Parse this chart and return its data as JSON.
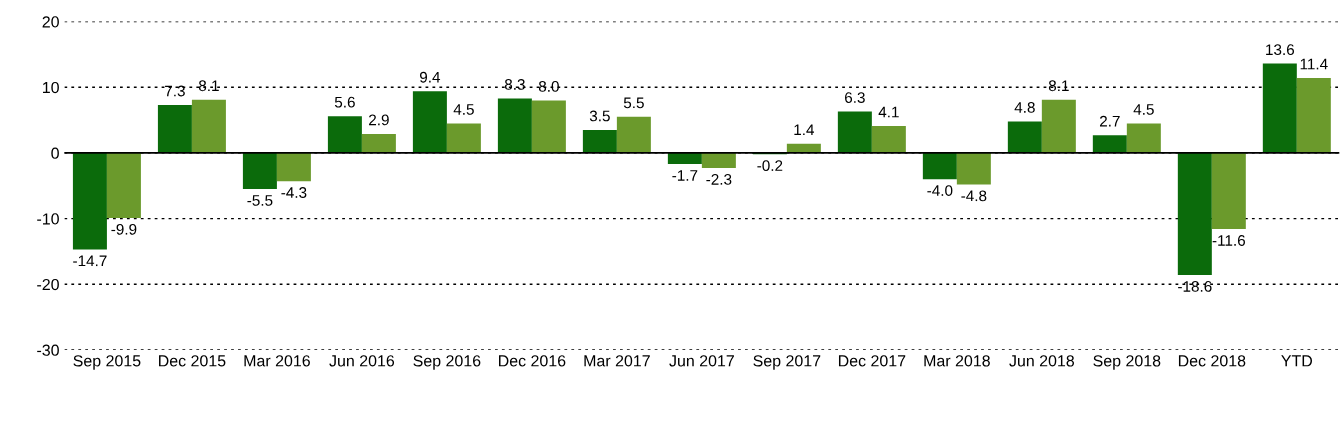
{
  "chart_data": {
    "type": "bar",
    "categories": [
      "Sep 2015",
      "Dec 2015",
      "Mar 2016",
      "Jun 2016",
      "Sep 2016",
      "Dec 2016",
      "Mar 2017",
      "Jun 2017",
      "Sep 2017",
      "Dec 2017",
      "Mar 2018",
      "Jun 2018",
      "Sep 2018",
      "Dec 2018",
      "YTD"
    ],
    "series": [
      {
        "color": "#0b6b0b",
        "values": [
          -14.7,
          7.3,
          -5.5,
          5.6,
          9.4,
          8.3,
          3.5,
          -1.7,
          -0.2,
          6.3,
          -4,
          4.8,
          2.7,
          -18.6,
          13.6
        ],
        "value_labels": [
          "-14.7",
          "7.3",
          "-5.5",
          "5.6",
          "9.4",
          "8.3",
          "3.5",
          "-1.7",
          "-0.2",
          "6.3",
          "-4.0",
          "4.8",
          "2.7",
          "-18.6",
          "13.6"
        ]
      },
      {
        "color": "#6b9a2c",
        "values": [
          -9.9,
          8.1,
          -4.3,
          2.9,
          4.5,
          8,
          5.5,
          -2.3,
          1.4,
          4.1,
          -4.8,
          8.1,
          4.5,
          -11.6,
          11.4
        ],
        "value_labels": [
          "-9.9",
          "8.1",
          "-4.3",
          "2.9",
          "4.5",
          "8.0",
          "5.5",
          "-2.3",
          "1.4",
          "4.1",
          "-4.8",
          "8.1",
          "4.5",
          "-11.6",
          "11.4"
        ]
      }
    ],
    "ylim": [
      -30,
      20
    ],
    "yticks": [
      -30,
      -20,
      -10,
      0,
      10,
      20
    ],
    "grid": "y",
    "ref_lines": [
      {
        "axis": "y",
        "value": 0,
        "color": "#000000"
      }
    ]
  }
}
